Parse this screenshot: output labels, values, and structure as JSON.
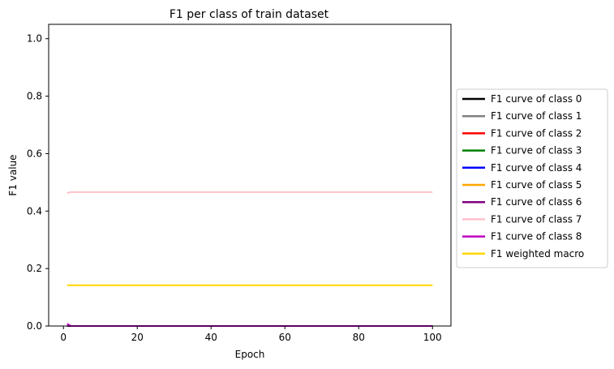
{
  "chart_data": {
    "type": "line",
    "title": "F1 per class of train dataset",
    "xlabel": "Epoch",
    "ylabel": "F1 value",
    "xlim": [
      -4,
      105
    ],
    "ylim": [
      0,
      1.05
    ],
    "xticks": [
      0,
      20,
      40,
      60,
      80,
      100
    ],
    "xtick_labels": [
      "0",
      "20",
      "40",
      "60",
      "80",
      "100"
    ],
    "yticks": [
      0.0,
      0.2,
      0.4,
      0.6,
      0.8,
      1.0
    ],
    "ytick_labels": [
      "0.0",
      "0.2",
      "0.4",
      "0.6",
      "0.8",
      "1.0"
    ],
    "grid": false,
    "legend_position": "center-right-outside",
    "series": [
      {
        "name": "F1 curve of class 0",
        "color": "#000000",
        "x": [
          1,
          100
        ],
        "y": [
          0.0,
          0.0
        ]
      },
      {
        "name": "F1 curve of class 1",
        "color": "#808080",
        "x": [
          1,
          100
        ],
        "y": [
          0.0,
          0.0
        ]
      },
      {
        "name": "F1 curve of class 2",
        "color": "#ff0000",
        "x": [
          1,
          100
        ],
        "y": [
          0.0,
          0.0
        ]
      },
      {
        "name": "F1 curve of class 3",
        "color": "#008000",
        "x": [
          1,
          100
        ],
        "y": [
          0.0,
          0.0
        ]
      },
      {
        "name": "F1 curve of class 4",
        "color": "#0000ff",
        "x": [
          1,
          100
        ],
        "y": [
          0.0,
          0.0
        ]
      },
      {
        "name": "F1 curve of class 5",
        "color": "#ffa500",
        "x": [
          1,
          100
        ],
        "y": [
          0.0,
          0.0
        ]
      },
      {
        "name": "F1 curve of class 6",
        "color": "#800080",
        "x": [
          1,
          100
        ],
        "y": [
          0.0,
          0.0
        ]
      },
      {
        "name": "F1 curve of class 7",
        "color": "#ffc0cb",
        "x": [
          1,
          2,
          100
        ],
        "y": [
          0.463,
          0.466,
          0.466
        ]
      },
      {
        "name": "F1 curve of class 8",
        "color": "#bf00bf",
        "x": [
          1,
          2,
          100
        ],
        "y": [
          0.008,
          0.0,
          0.0
        ]
      },
      {
        "name": "F1 weighted macro",
        "color": "#ffd700",
        "x": [
          1,
          100
        ],
        "y": [
          0.142,
          0.142
        ]
      }
    ]
  }
}
